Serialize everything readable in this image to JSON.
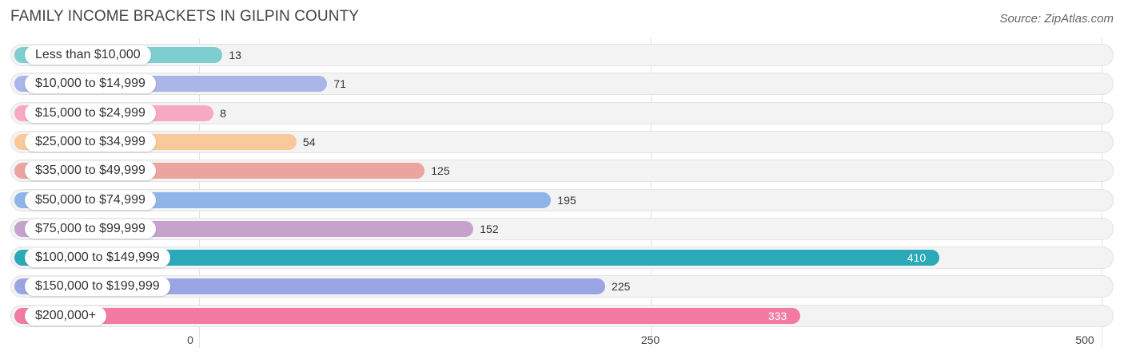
{
  "title": "FAMILY INCOME BRACKETS IN GILPIN COUNTY",
  "source": "Source: ZipAtlas.com",
  "chart_data": {
    "type": "bar",
    "orientation": "horizontal",
    "title": "FAMILY INCOME BRACKETS IN GILPIN COUNTY",
    "categories": [
      "Less than $10,000",
      "$10,000 to $14,999",
      "$15,000 to $24,999",
      "$25,000 to $34,999",
      "$35,000 to $49,999",
      "$50,000 to $74,999",
      "$75,000 to $99,999",
      "$100,000 to $149,999",
      "$150,000 to $199,999",
      "$200,000+"
    ],
    "values": [
      13,
      71,
      8,
      54,
      125,
      195,
      152,
      410,
      225,
      333
    ],
    "colors": [
      "#7ecdd0",
      "#aab5e8",
      "#f7a9c1",
      "#f9c99a",
      "#eca4a0",
      "#8fb4e6",
      "#c4a2cb",
      "#2aa9b8",
      "#9ba5e4",
      "#f27aa3"
    ],
    "value_label_inside": [
      false,
      false,
      false,
      false,
      false,
      false,
      false,
      true,
      false,
      true
    ],
    "xlim": [
      0,
      500
    ],
    "xticks": [
      0,
      250,
      500
    ],
    "xlabel": "",
    "ylabel": ""
  }
}
